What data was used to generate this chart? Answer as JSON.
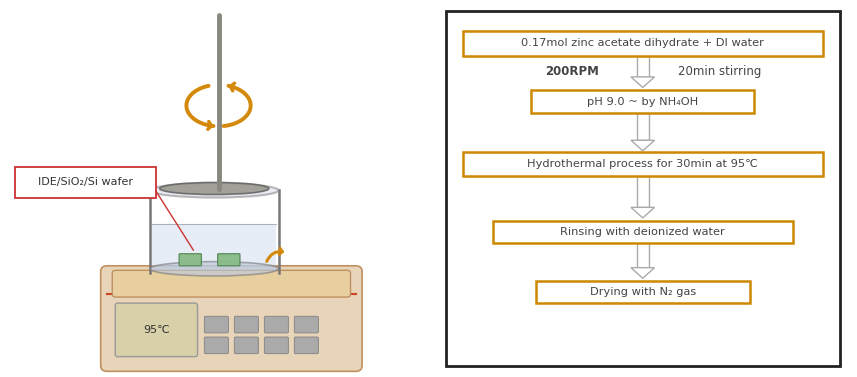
{
  "bg_color": "#ffffff",
  "fig_width": 8.57,
  "fig_height": 3.77,
  "left_panel": {
    "beaker_color": "#c8d4ec",
    "beaker_edge_color": "#777777",
    "hotplate_body_color": "#e8d4b8",
    "hotplate_top_color": "#e8cfa0",
    "hotplate_edge": "#c09060",
    "stirrer_color": "#888880",
    "arrow_color": "#d4890a",
    "label_text": "IDE/SiO₂/Si wafer",
    "label_box_edge": "#cc3333",
    "temp_text": "95℃",
    "wafer_color": "#88bb88",
    "wafer_edge": "#558855",
    "btn_color": "#aaaaaa",
    "display_color": "#d8d0a8"
  },
  "right_panel": {
    "outer_box_edge": "#222222",
    "box_border_color": "#cc8800",
    "arrow_body_color": "#aaaaaa",
    "text_color": "#444444",
    "step1_text": "0.17mol zinc acetate dihydrate + DI water",
    "step2_left": "200RPM",
    "step2_right": "20min stirring",
    "step3_text": "pH 9.0 ~ by NH₄OH",
    "step4_text": "Hydrothermal process for 30min at 95℃",
    "step5_text": "Rinsing with deionized water",
    "step6_text": "Drying with N₂ gas"
  }
}
